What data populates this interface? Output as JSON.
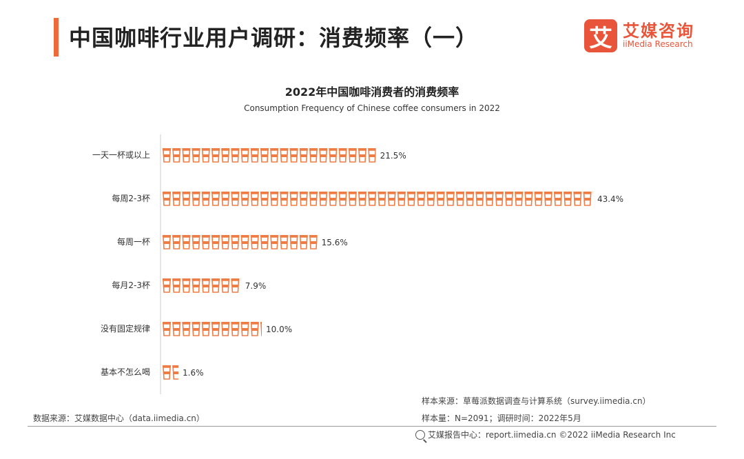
{
  "header": {
    "title": "中国咖啡行业用户调研：消费频率（一）",
    "logo_glyph": "艾",
    "logo_cn": "艾媒咨询",
    "logo_en": "iiMedia Research",
    "accent_color": "#ee6a3b"
  },
  "chart_data": {
    "type": "bar",
    "orientation": "horizontal",
    "title": "2022年中国咖啡消费者的消费频率",
    "subtitle": "Consumption Frequency of Chinese coffee consumers in 2022",
    "categories": [
      "一天一杯或以上",
      "每周2-3杯",
      "每周一杯",
      "每月2-3杯",
      "没有固定规律",
      "基本不怎么喝"
    ],
    "values": [
      21.5,
      43.4,
      15.6,
      7.9,
      10.0,
      1.6
    ],
    "value_labels": [
      "21.5%",
      "43.4%",
      "15.6%",
      "7.9%",
      "10.0%",
      "1.6%"
    ],
    "unit": "%",
    "bar_style": "coffee-cup-icons",
    "bar_color": "#ee7d45",
    "xlim": [
      0,
      45
    ]
  },
  "footer": {
    "source_left": "数据来源：艾媒数据中心（data.iimedia.cn）",
    "sample_source": "样本来源：草莓派数据调查与计算系统（survey.iimedia.cn）",
    "sample_size": "样本量：N=2091；调研时间：2022年5月",
    "copyright": "艾媒报告中心：report.iimedia.cn ©2022 iiMedia Research Inc"
  }
}
